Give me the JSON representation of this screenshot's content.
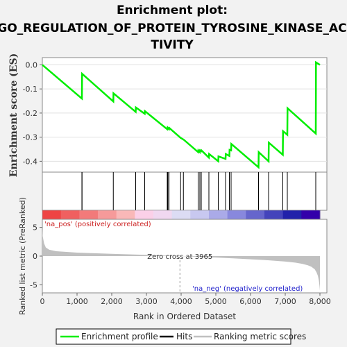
{
  "chart_data": {
    "type": "line",
    "title_lines": [
      "Enrichment plot:",
      "GO_REGULATION_OF_PROTEIN_TYROSINE_KINASE_AC",
      "TIVITY"
    ],
    "panel_es": {
      "ylabel": "Enrichment score (ES)",
      "ylim": [
        -0.445,
        0.03
      ],
      "yticks": [
        0.0,
        -0.1,
        -0.2,
        -0.3,
        -0.4
      ],
      "ytick_labels": [
        "0.0",
        "-0.1",
        "-0.2",
        "-0.3",
        "-0.4"
      ],
      "series": [
        {
          "name": "Enrichment profile",
          "color": "#00ee00",
          "x": [
            0,
            1140,
            1145,
            2045,
            2050,
            2690,
            2695,
            2950,
            2955,
            3600,
            3610,
            3650,
            3660,
            3985,
            3990,
            4065,
            4070,
            4490,
            4495,
            4540,
            4545,
            4580,
            4585,
            4800,
            4805,
            5070,
            5075,
            5280,
            5285,
            5390,
            5395,
            5440,
            5445,
            6230,
            6235,
            6520,
            6525,
            6930,
            6935,
            7060,
            7065,
            7880,
            7885,
            8000
          ],
          "values": [
            0.0,
            -0.14,
            -0.037,
            -0.152,
            -0.118,
            -0.195,
            -0.177,
            -0.203,
            -0.192,
            -0.267,
            -0.26,
            -0.267,
            -0.262,
            -0.303,
            -0.303,
            -0.31,
            -0.31,
            -0.362,
            -0.355,
            -0.362,
            -0.355,
            -0.358,
            -0.355,
            -0.385,
            -0.37,
            -0.4,
            -0.38,
            -0.39,
            -0.37,
            -0.378,
            -0.353,
            -0.355,
            -0.328,
            -0.425,
            -0.362,
            -0.4,
            -0.323,
            -0.373,
            -0.275,
            -0.29,
            -0.18,
            -0.285,
            0.01,
            0.0
          ]
        }
      ]
    },
    "hits": [
      1140,
      1145,
      2045,
      2690,
      2950,
      3600,
      3620,
      3650,
      3985,
      4065,
      4490,
      4540,
      4580,
      4800,
      5070,
      5280,
      5390,
      5440,
      6230,
      6520,
      6930,
      7060,
      7880
    ],
    "heatmap_colors": [
      "#ee4444",
      "#f06060",
      "#f27a7a",
      "#f69a9a",
      "#f9b8b8",
      "#fbd0e8",
      "#f0d8f0",
      "#dcdcf4",
      "#c8c8f0",
      "#aaaae8",
      "#8888dd",
      "#6666cc",
      "#4444bb",
      "#2222aa",
      "#3300aa"
    ],
    "panel_metric": {
      "ylabel": "Ranked list metric (PreRanked)",
      "ylim": [
        -6.4,
        6.4
      ],
      "yticks": [
        5,
        0,
        -5
      ],
      "ytick_labels": [
        "5",
        "0",
        "-5"
      ],
      "fill_color": "#c0c0c0",
      "profile": {
        "x": [
          0,
          10,
          50,
          100,
          200,
          400,
          700,
          1000,
          1500,
          2000,
          2500,
          3000,
          3500,
          3965,
          4500,
          5000,
          5500,
          6000,
          6500,
          7000,
          7300,
          7500,
          7650,
          7750,
          7850,
          7900,
          7940,
          7970,
          7990,
          8000
        ],
        "values": [
          4.8,
          3.5,
          2.2,
          1.5,
          1.1,
          0.85,
          0.72,
          0.6,
          0.5,
          0.4,
          0.3,
          0.2,
          0.1,
          0.0,
          -0.12,
          -0.25,
          -0.4,
          -0.55,
          -0.72,
          -0.95,
          -1.15,
          -1.35,
          -1.6,
          -1.85,
          -2.3,
          -2.8,
          -3.4,
          -4.3,
          -5.3,
          -6.0
        ]
      }
    },
    "xaxis": {
      "label": "Rank in Ordered Dataset",
      "xlim": [
        0,
        8200
      ],
      "xticks": [
        0,
        1000,
        2000,
        3000,
        4000,
        5000,
        6000,
        7000,
        8000
      ],
      "xtick_labels": [
        "0",
        "1,000",
        "2,000",
        "3,000",
        "4,000",
        "5,000",
        "6,000",
        "7,000",
        "8,000"
      ]
    },
    "annotations": {
      "zero_cross_text": "Zero cross at 3965",
      "zero_cross_x": 3965,
      "pos_text": "'na_pos' (positively correlated)",
      "pos_color": "#cc2222",
      "neg_text": "'na_neg' (negatively correlated)",
      "neg_color": "#2222cc"
    },
    "legend": [
      {
        "label": "Enrichment profile",
        "color": "#00ee00"
      },
      {
        "label": "Hits",
        "color": "#000000"
      },
      {
        "label": "Ranking metric scores",
        "color": "#c0c0c0"
      }
    ],
    "legend_position": "bottom"
  }
}
